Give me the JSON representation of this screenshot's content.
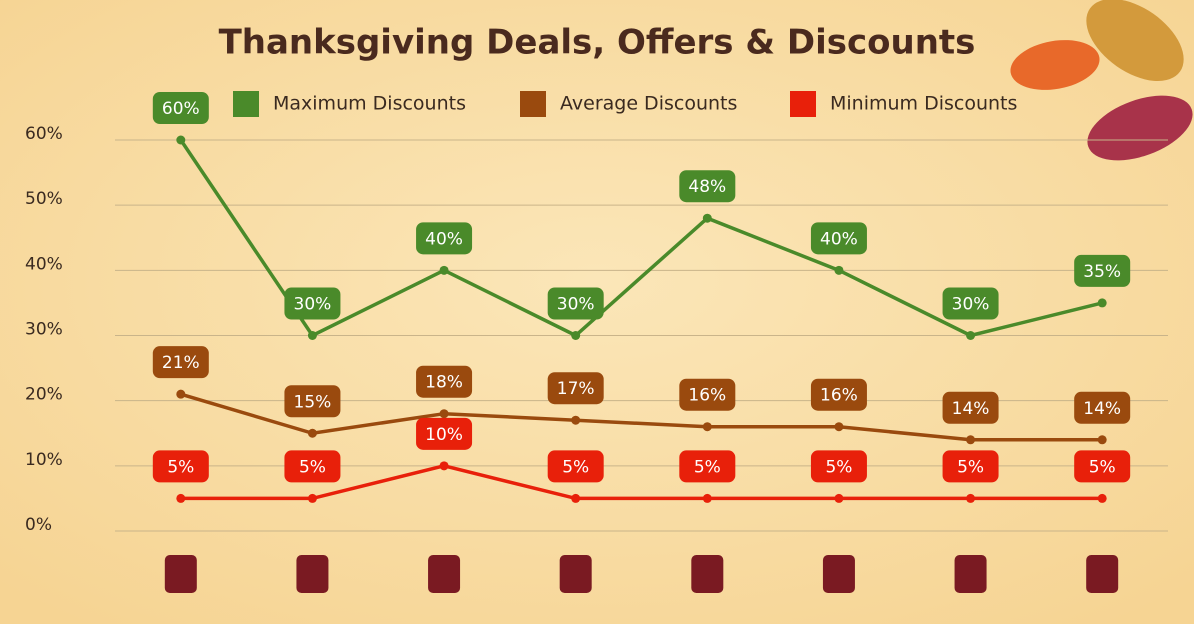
{
  "chart_data": {
    "type": "line",
    "title": "Thanksgiving Deals, Offers & Discounts",
    "categories": [
      null,
      null,
      null,
      null,
      null,
      null,
      null,
      null
    ],
    "series": [
      {
        "name": "Maximum Discounts",
        "color": "#4a8a2a",
        "values": [
          60,
          30,
          40,
          30,
          48,
          40,
          30,
          35
        ],
        "value_labels": [
          "60%",
          "30%",
          "40%",
          "30%",
          "48%",
          "40%",
          "30%",
          "35%"
        ]
      },
      {
        "name": "Average Discounts",
        "color": "#9a4a0e",
        "values": [
          21,
          15,
          18,
          17,
          16,
          16,
          14,
          14
        ],
        "value_labels": [
          "21%",
          "15%",
          "18%",
          "17%",
          "16%",
          "16%",
          "14%",
          "14%"
        ]
      },
      {
        "name": "Minimum Discounts",
        "color": "#e8200a",
        "values": [
          5,
          5,
          10,
          5,
          5,
          5,
          5,
          5
        ],
        "value_labels": [
          "5%",
          "5%",
          "10%",
          "5%",
          "5%",
          "5%",
          "5%",
          "5%"
        ]
      }
    ],
    "ylim": [
      0,
      60
    ],
    "yticks": [
      {
        "value": 0,
        "label": "0%"
      },
      {
        "value": 10,
        "label": "10%"
      },
      {
        "value": 20,
        "label": "20%"
      },
      {
        "value": 30,
        "label": "30%"
      },
      {
        "value": 40,
        "label": "40%"
      },
      {
        "value": 50,
        "label": "50%"
      },
      {
        "value": 60,
        "label": "60%"
      }
    ],
    "grid": true
  }
}
